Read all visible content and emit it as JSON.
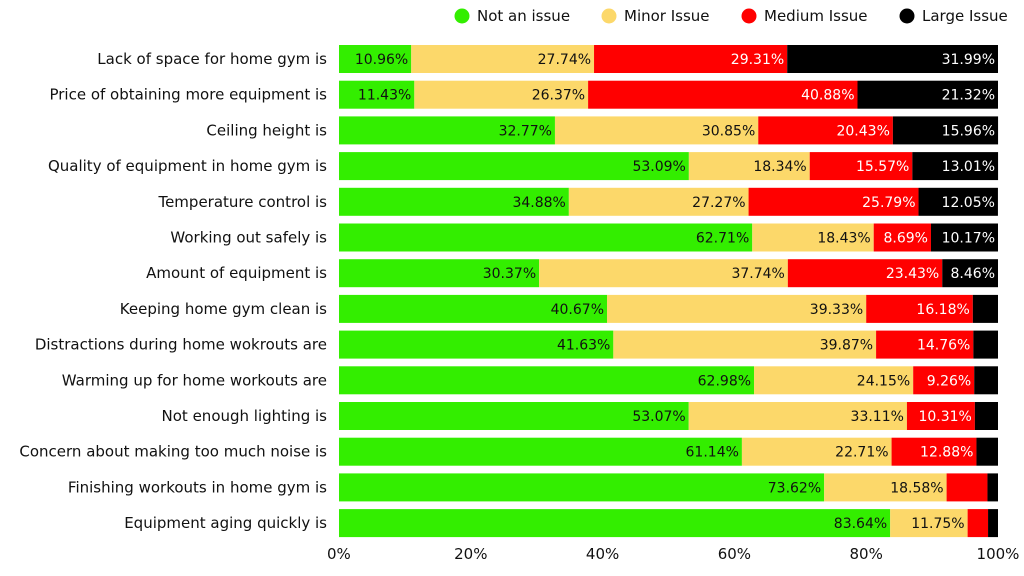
{
  "chart_data": {
    "type": "bar",
    "orientation": "horizontal",
    "stacked": true,
    "title": "",
    "xlabel": "",
    "ylabel": "",
    "xlim": [
      0,
      100
    ],
    "x_ticks": [
      "0%",
      "20%",
      "40%",
      "60%",
      "80%",
      "100%"
    ],
    "x_tick_values": [
      0,
      20,
      40,
      60,
      80,
      100
    ],
    "grid": false,
    "legend_position": "top-right",
    "categories": [
      "Lack of space for home gym is",
      "Price of obtaining more equipment is",
      "Ceiling height is",
      "Quality of equipment in home gym is",
      "Temperature control is",
      "Working out safely is",
      "Amount of equipment is",
      "Keeping home gym clean is",
      "Distractions during home wokrouts are",
      "Warming up for home workouts are",
      "Not enough lighting is",
      "Concern about making too much noise is",
      "Finishing workouts in home gym is",
      "Equipment aging quickly is"
    ],
    "series": [
      {
        "name": "Not an issue",
        "color": "#33ee00",
        "text_color": "#111111",
        "values": [
          10.96,
          11.43,
          32.77,
          53.09,
          34.88,
          62.71,
          30.37,
          40.67,
          41.63,
          62.98,
          53.07,
          61.14,
          73.62,
          83.64
        ],
        "labels": [
          "10.96%",
          "11.43%",
          "32.77%",
          "53.09%",
          "34.88%",
          "62.71%",
          "30.37%",
          "40.67%",
          "41.63%",
          "62.98%",
          "53.07%",
          "61.14%",
          "73.62%",
          "83.64%"
        ]
      },
      {
        "name": "Minor Issue",
        "color": "#fcd86a",
        "text_color": "#111111",
        "values": [
          27.74,
          26.37,
          30.85,
          18.34,
          27.27,
          18.43,
          37.74,
          39.33,
          39.87,
          24.15,
          33.11,
          22.71,
          18.58,
          11.75
        ],
        "labels": [
          "27.74%",
          "26.37%",
          "30.85%",
          "18.34%",
          "27.27%",
          "18.43%",
          "37.74%",
          "39.33%",
          "39.87%",
          "24.15%",
          "33.11%",
          "22.71%",
          "18.58%",
          "11.75%"
        ]
      },
      {
        "name": "Medium Issue",
        "color": "#ff0000",
        "text_color": "#ffffff",
        "values": [
          29.31,
          40.88,
          20.43,
          15.57,
          25.79,
          8.69,
          23.43,
          16.18,
          14.76,
          9.26,
          10.31,
          12.88,
          6.2,
          3.1
        ],
        "labels": [
          "29.31%",
          "40.88%",
          "20.43%",
          "15.57%",
          "25.79%",
          "8.69%",
          "23.43%",
          "16.18%",
          "14.76%",
          "9.26%",
          "10.31%",
          "12.88%",
          "",
          ""
        ]
      },
      {
        "name": "Large Issue",
        "color": "#000000",
        "text_color": "#ffffff",
        "values": [
          31.99,
          21.32,
          15.96,
          13.01,
          12.05,
          10.17,
          8.46,
          3.82,
          3.74,
          3.61,
          3.51,
          3.27,
          1.6,
          1.51
        ],
        "labels": [
          "31.99%",
          "21.32%",
          "15.96%",
          "13.01%",
          "12.05%",
          "10.17%",
          "8.46%",
          "",
          "",
          "",
          "",
          "",
          "",
          ""
        ]
      }
    ]
  }
}
